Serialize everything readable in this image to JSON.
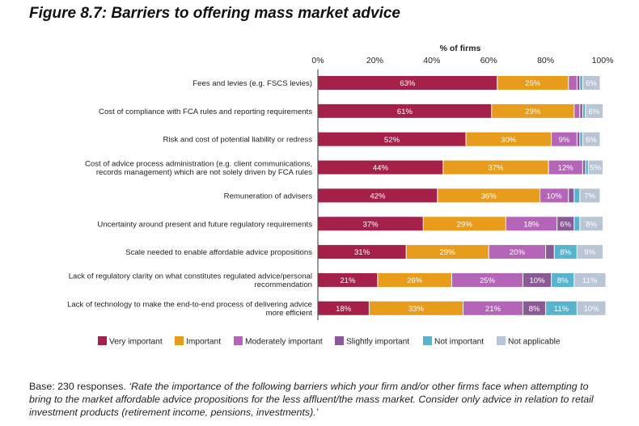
{
  "figure": {
    "title": "Figure 8.7: Barriers to offering mass market advice"
  },
  "caption": {
    "base": "Base: 230 responses.",
    "quote": "‘Rate the importance of the following barriers which your firm and/or other firms face when attempting to bring to the market affordable advice propositions for the less affluent/the mass market. Consider only advice in relation to retail investment products (retirement income, pensions, investments).’"
  },
  "chart_data": {
    "type": "bar",
    "orientation": "horizontal",
    "stacked": true,
    "axis_title": "% of firms",
    "xlim": [
      0,
      100
    ],
    "ticks": [
      "0%",
      "20%",
      "40%",
      "60%",
      "80%",
      "100%"
    ],
    "grid": false,
    "legend_position": "bottom",
    "categories": [
      [
        "Fees and levies (e.g. FSCS levies)"
      ],
      [
        "Cost of compliance with FCA rules and reporting requirements"
      ],
      [
        "Risk and cost of potential liability or redress"
      ],
      [
        "Cost of advice process administration (e.g. client communications,",
        "records management) which are not solely driven by FCA rules"
      ],
      [
        "Remuneration of advisers"
      ],
      [
        "Uncertainty around present and future regulatory requirements"
      ],
      [
        "Scale needed to enable affordable advice propositions"
      ],
      [
        "Lack of regulatory clarity on what constitutes regulated advice/personal",
        "recommendation"
      ],
      [
        "Lack of technology to make the end-to-end process of delivering advice",
        "more efficient"
      ]
    ],
    "series": [
      {
        "name": "Very important",
        "color": "#a6214a",
        "values": [
          63,
          61,
          52,
          44,
          42,
          37,
          31,
          21,
          18
        ]
      },
      {
        "name": "Important",
        "color": "#e89c1c",
        "values": [
          25,
          29,
          30,
          37,
          36,
          29,
          29,
          26,
          33
        ]
      },
      {
        "name": "Moderately important",
        "color": "#b565b8",
        "values": [
          3,
          2,
          9,
          12,
          10,
          18,
          20,
          25,
          21
        ]
      },
      {
        "name": "Slightly important",
        "color": "#8a5a96",
        "values": [
          1,
          1,
          1,
          1,
          2,
          6,
          3,
          10,
          8
        ]
      },
      {
        "name": "Not important",
        "color": "#58b4cc",
        "values": [
          1,
          1,
          1,
          1,
          2,
          2,
          8,
          8,
          11
        ]
      },
      {
        "name": "Not applicable",
        "color": "#b9c4d4",
        "values": [
          6,
          6,
          6,
          5,
          7,
          8,
          9,
          11,
          10
        ]
      }
    ],
    "data_labels": [
      [
        "63%",
        "25%",
        "",
        "",
        "",
        "6%"
      ],
      [
        "61%",
        "29%",
        "",
        "",
        "",
        "6%"
      ],
      [
        "52%",
        "30%",
        "9%",
        "",
        "",
        "6%"
      ],
      [
        "44%",
        "37%",
        "12%",
        "",
        "",
        "5%"
      ],
      [
        "42%",
        "36%",
        "10%",
        "",
        "",
        "7%"
      ],
      [
        "37%",
        "29%",
        "18%",
        "6%",
        "",
        "8%"
      ],
      [
        "31%",
        "29%",
        "20%",
        "",
        "8%",
        "9%"
      ],
      [
        "21%",
        "26%",
        "25%",
        "10%",
        "8%",
        "11%"
      ],
      [
        "18%",
        "33%",
        "21%",
        "8%",
        "11%",
        "10%"
      ]
    ]
  }
}
